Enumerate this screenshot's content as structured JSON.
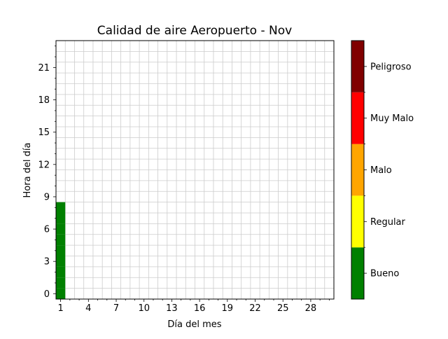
{
  "chart_data": {
    "type": "heatmap",
    "title": "Calidad de aire Aeropuerto - Nov",
    "xlabel": "Día del mes",
    "ylabel": "Hora del día",
    "x_ticks": [
      1,
      4,
      7,
      10,
      13,
      16,
      19,
      22,
      25,
      28
    ],
    "y_ticks": [
      0,
      3,
      6,
      9,
      12,
      15,
      18,
      21
    ],
    "xlim": [
      0.5,
      30.5
    ],
    "ylim": [
      -0.5,
      23.5
    ],
    "grid": true,
    "colorbar": {
      "categories": [
        {
          "label": "Bueno",
          "color": "#008000"
        },
        {
          "label": "Regular",
          "color": "#ffff00"
        },
        {
          "label": "Malo",
          "color": "#ffa500"
        },
        {
          "label": "Muy Malo",
          "color": "#ff0000"
        },
        {
          "label": "Peligroso",
          "color": "#800000"
        }
      ]
    },
    "cells": [
      {
        "day": 1,
        "hour": 0,
        "category": "Bueno"
      },
      {
        "day": 1,
        "hour": 1,
        "category": "Bueno"
      },
      {
        "day": 1,
        "hour": 2,
        "category": "Bueno"
      },
      {
        "day": 1,
        "hour": 3,
        "category": "Bueno"
      },
      {
        "day": 1,
        "hour": 4,
        "category": "Bueno"
      },
      {
        "day": 1,
        "hour": 5,
        "category": "Bueno"
      },
      {
        "day": 1,
        "hour": 6,
        "category": "Bueno"
      },
      {
        "day": 1,
        "hour": 7,
        "category": "Bueno"
      },
      {
        "day": 1,
        "hour": 8,
        "category": "Bueno"
      }
    ]
  }
}
